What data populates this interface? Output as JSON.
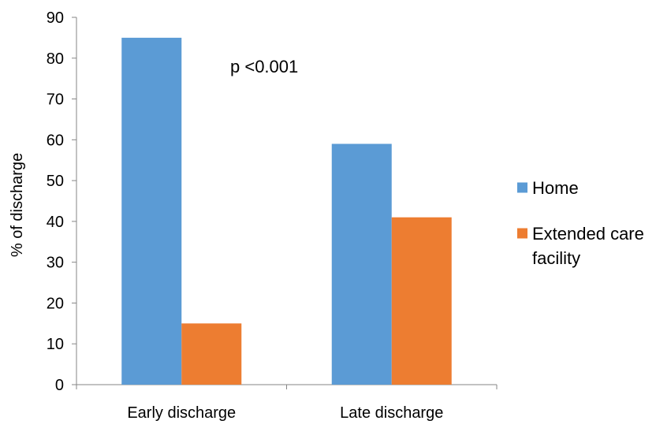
{
  "chart_data": {
    "type": "bar",
    "title": "",
    "xlabel": "",
    "ylabel": "% of discharge",
    "categories": [
      "Early discharge",
      "Late discharge"
    ],
    "series": [
      {
        "name": "Home",
        "values": [
          85,
          59
        ]
      },
      {
        "name": "Extended care facility",
        "values": [
          15,
          41
        ]
      }
    ],
    "yticks": [
      "0",
      "10",
      "20",
      "30",
      "40",
      "50",
      "60",
      "70",
      "80",
      "90"
    ],
    "ylim": [
      0,
      90
    ],
    "annotation": "p <0.001",
    "legend_position": "right",
    "grid": false,
    "colors": [
      "#5b9bd5",
      "#ed7d31"
    ]
  }
}
